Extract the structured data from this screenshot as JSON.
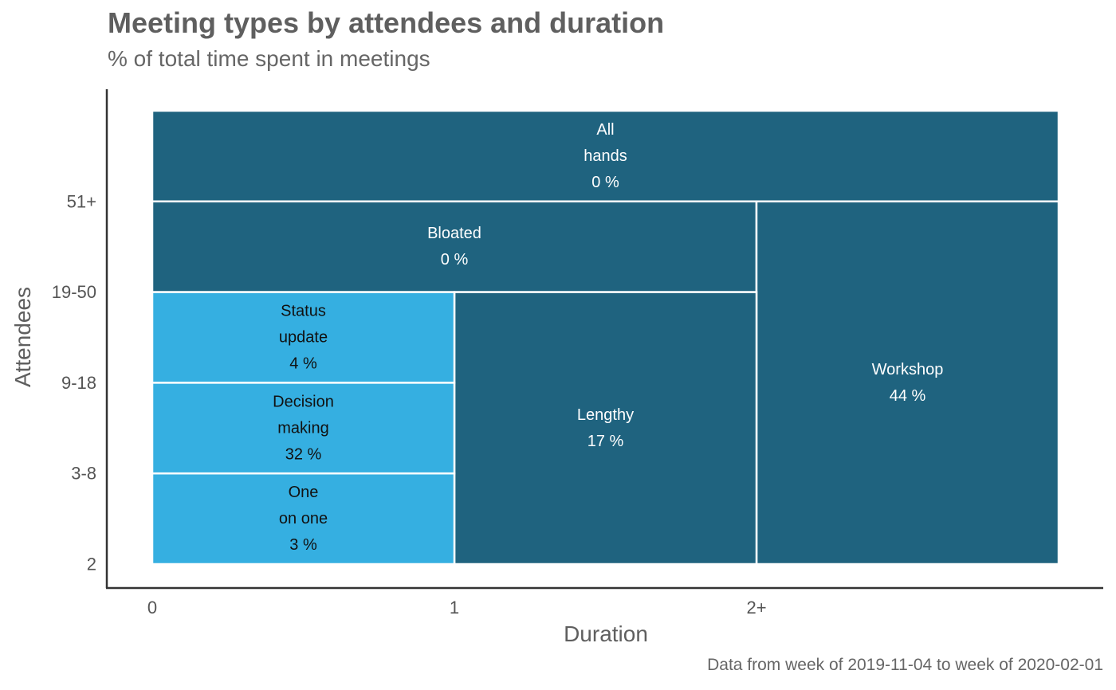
{
  "chart_data": {
    "type": "heatmap",
    "title": "Meeting types by attendees and duration",
    "subtitle": "% of total time spent in meetings",
    "caption": "Data from week of 2019-11-04 to week of 2020-02-01",
    "xlabel": "Duration",
    "ylabel": "Attendees",
    "x_ticks": [
      "0",
      "1",
      "2+"
    ],
    "y_ticks": [
      "2",
      "3-8",
      "9-18",
      "19-50",
      "51+"
    ],
    "x_range": [
      0,
      3
    ],
    "y_range": [
      0,
      5
    ],
    "colors": {
      "high": "#1f637f",
      "low": "#35afe1",
      "grid": "#ffffff"
    },
    "cells": [
      {
        "lines": [
          "All",
          "hands",
          "0 %"
        ],
        "value": 0,
        "x0": 0,
        "x1": 3,
        "y0": 4,
        "y1": 5,
        "shade": "high"
      },
      {
        "lines": [
          "Bloated",
          "0 %"
        ],
        "value": 0,
        "x0": 0,
        "x1": 2,
        "y0": 3,
        "y1": 4,
        "shade": "high"
      },
      {
        "lines": [
          "Workshop",
          "44 %"
        ],
        "value": 44,
        "x0": 2,
        "x1": 3,
        "y0": 0,
        "y1": 4,
        "shade": "high"
      },
      {
        "lines": [
          "Lengthy",
          "17 %"
        ],
        "value": 17,
        "x0": 1,
        "x1": 2,
        "y0": 0,
        "y1": 3,
        "shade": "high"
      },
      {
        "lines": [
          "Status",
          "update",
          "4 %"
        ],
        "value": 4,
        "x0": 0,
        "x1": 1,
        "y0": 2,
        "y1": 3,
        "shade": "low"
      },
      {
        "lines": [
          "Decision",
          "making",
          "32 %"
        ],
        "value": 32,
        "x0": 0,
        "x1": 1,
        "y0": 1,
        "y1": 2,
        "shade": "low"
      },
      {
        "lines": [
          "One",
          "on one",
          "3 %"
        ],
        "value": 3,
        "x0": 0,
        "x1": 1,
        "y0": 0,
        "y1": 1,
        "shade": "low"
      }
    ]
  }
}
